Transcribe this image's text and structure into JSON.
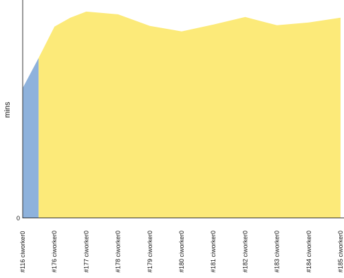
{
  "chart_data": {
    "type": "area",
    "ylabel": "mins",
    "y_tick_labels": [
      "0"
    ],
    "categories": [
      "#116 ciworker0",
      "#176 ciworker0",
      "#177 ciworker0",
      "#178 ciworker0",
      "#179 ciworker0",
      "#180 ciworker0",
      "#181 ciworker0",
      "#182 ciworker0",
      "#183 ciworker0",
      "#184 ciworker0",
      "#185 ciworker0"
    ],
    "ylim": [
      0,
      320
    ],
    "x_scale": "index",
    "grid": false,
    "legend": "none",
    "series": [
      {
        "color": "#8eb2dc",
        "segment": "first",
        "points": [
          [
            0,
            191
          ],
          [
            0.5,
            235
          ]
        ]
      },
      {
        "color": "#fcea79",
        "segment": "rest",
        "points": [
          [
            0.5,
            235
          ],
          [
            1,
            281
          ],
          [
            1.5,
            294
          ],
          [
            2,
            303
          ],
          [
            3,
            299
          ],
          [
            4,
            282
          ],
          [
            5,
            274
          ],
          [
            6,
            284
          ],
          [
            7,
            295
          ],
          [
            8,
            283
          ],
          [
            9,
            287
          ],
          [
            10,
            294
          ]
        ]
      }
    ],
    "colors": {
      "axis": "#333333",
      "text": "#111111"
    }
  }
}
